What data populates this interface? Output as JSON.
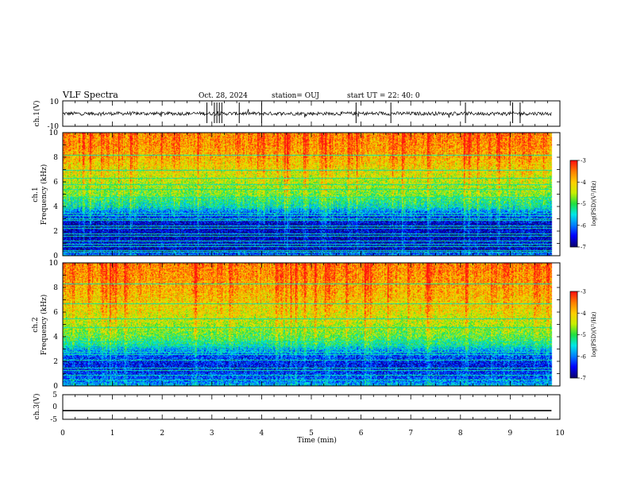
{
  "header": {
    "title": "VLF Spectra",
    "date": "Oct. 28, 2024",
    "station": "station= OUJ",
    "start": "start  UT =   22: 40: 0"
  },
  "colors": {
    "stops": [
      "#0a0070",
      "#0000ff",
      "#0080ff",
      "#00e8e8",
      "#20e040",
      "#c8f000",
      "#ffd000",
      "#ff8000",
      "#ff1010"
    ]
  },
  "chart_data": [
    {
      "type": "line",
      "name": "ch1-waveform",
      "ylabel": "ch.1(V)",
      "ylim": [
        -10,
        10
      ],
      "yticks": [
        "10",
        "-10"
      ],
      "baseline": 0,
      "noise": 1.4,
      "spike_times": [
        2.9,
        3.05,
        3.1,
        3.15,
        3.2,
        3.55,
        4.0,
        5.9,
        6.6,
        8.1,
        9.05,
        9.2
      ]
    },
    {
      "type": "heatmap",
      "name": "ch1-spectrogram",
      "ylabel": "ch.1\nFrequency  (kHz)",
      "ylabel_lines": [
        "ch.1",
        "Frequency  (kHz)"
      ],
      "ylim": [
        0,
        10
      ],
      "yticks": [
        "0",
        "2",
        "4",
        "6",
        "8",
        "10"
      ],
      "colorbar": {
        "label": "log(PSD)(V²/Hz)",
        "range": [
          -7,
          -3
        ],
        "ticks": [
          "-3",
          "-4",
          "-5",
          "-6",
          "-7"
        ]
      },
      "bands": [
        {
          "f": 0.0,
          "v": 0.3
        },
        {
          "f": 0.5,
          "v": 0.05
        },
        {
          "f": 1.0,
          "v": 0.1
        },
        {
          "f": 1.5,
          "v": 0.05
        },
        {
          "f": 2.0,
          "v": 0.08
        },
        {
          "f": 2.5,
          "v": 0.06
        },
        {
          "f": 3.0,
          "v": 0.14
        },
        {
          "f": 3.5,
          "v": 0.22
        },
        {
          "f": 4.0,
          "v": 0.4
        },
        {
          "f": 4.5,
          "v": 0.45
        },
        {
          "f": 5.0,
          "v": 0.55
        },
        {
          "f": 6.0,
          "v": 0.62
        },
        {
          "f": 7.0,
          "v": 0.7
        },
        {
          "f": 8.0,
          "v": 0.78
        },
        {
          "f": 9.0,
          "v": 0.83
        },
        {
          "f": 10.0,
          "v": 0.85
        }
      ],
      "lines_khz": [
        0.3,
        0.45,
        0.8,
        1.0,
        1.2,
        1.6,
        1.8,
        2.25,
        2.45,
        2.9,
        3.05,
        3.3,
        3.5,
        4.75,
        5.4,
        5.8,
        6.3,
        7.0,
        8.2
      ]
    },
    {
      "type": "heatmap",
      "name": "ch2-spectrogram",
      "ylabel": "ch.2\nFrequency  (kHz)",
      "ylabel_lines": [
        "ch.2",
        "Frequency  (kHz)"
      ],
      "ylim": [
        0,
        10
      ],
      "yticks": [
        "0",
        "2",
        "4",
        "6",
        "8",
        "10"
      ],
      "colorbar": {
        "label": "log(PSD)(V²/Hz)",
        "range": [
          -7,
          -3
        ],
        "ticks": [
          "-3",
          "-4",
          "-5",
          "-6",
          "-7"
        ]
      },
      "bands": [
        {
          "f": 0.0,
          "v": 0.35
        },
        {
          "f": 0.5,
          "v": 0.22
        },
        {
          "f": 1.0,
          "v": 0.18
        },
        {
          "f": 1.5,
          "v": 0.12
        },
        {
          "f": 2.0,
          "v": 0.15
        },
        {
          "f": 2.5,
          "v": 0.2
        },
        {
          "f": 3.0,
          "v": 0.32
        },
        {
          "f": 3.5,
          "v": 0.45
        },
        {
          "f": 4.0,
          "v": 0.52
        },
        {
          "f": 5.0,
          "v": 0.62
        },
        {
          "f": 6.0,
          "v": 0.7
        },
        {
          "f": 7.0,
          "v": 0.75
        },
        {
          "f": 8.0,
          "v": 0.8
        },
        {
          "f": 9.0,
          "v": 0.84
        },
        {
          "f": 10.0,
          "v": 0.86
        }
      ],
      "lines_khz": [
        0.5,
        0.9,
        1.3,
        1.5,
        2.1,
        2.6,
        2.8,
        3.3,
        3.6,
        4.8,
        5.5,
        6.7,
        8.3
      ]
    },
    {
      "type": "line",
      "name": "ch3-waveform",
      "ylabel": "ch.3(V)",
      "ylim": [
        -5,
        5
      ],
      "yticks": [
        "5",
        "0",
        "-5"
      ],
      "baseline": -1.5,
      "noise": 0
    }
  ],
  "xaxis": {
    "label": "Time  (min)",
    "range": [
      0,
      10
    ],
    "ticks": [
      "0",
      "1",
      "2",
      "3",
      "4",
      "5",
      "6",
      "7",
      "8",
      "9",
      "10"
    ],
    "data_end": 9.83
  }
}
